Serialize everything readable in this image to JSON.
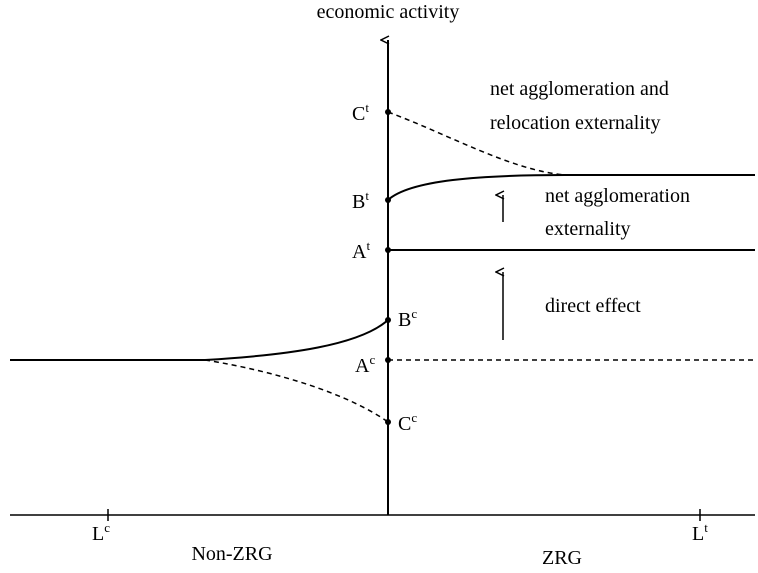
{
  "axis_label": "economic activity",
  "points": [
    {
      "base": "C",
      "sup": "t"
    },
    {
      "base": "B",
      "sup": "t"
    },
    {
      "base": "A",
      "sup": "t"
    },
    {
      "base": "B",
      "sup": "c"
    },
    {
      "base": "A",
      "sup": "c"
    },
    {
      "base": "C",
      "sup": "c"
    }
  ],
  "annotations": [
    "net agglomeration and",
    "relocation externality",
    "net agglomeration",
    "externality",
    "direct effect"
  ],
  "ticks": [
    {
      "base": "L",
      "sup": "c"
    },
    {
      "base": "L",
      "sup": "t"
    }
  ],
  "regions": [
    "Non-ZRG",
    "ZRG"
  ]
}
